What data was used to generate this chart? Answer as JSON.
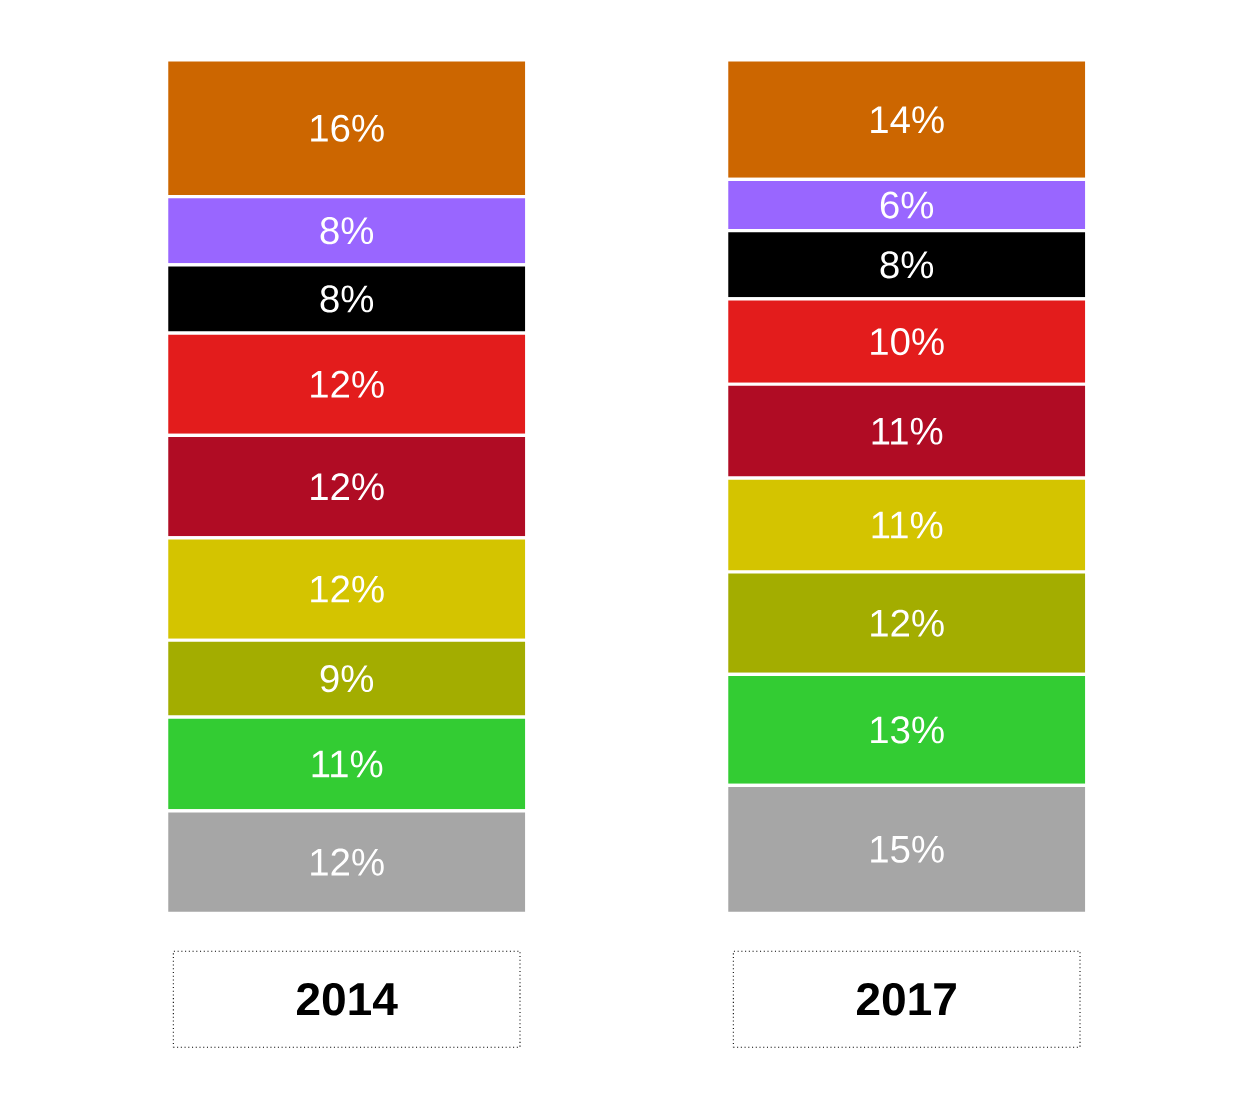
{
  "chart_data": {
    "type": "bar",
    "stacked": true,
    "categories": [
      "2014",
      "2017"
    ],
    "series": [
      {
        "color": "#a6a6a6",
        "values": [
          12,
          15
        ],
        "value_labels": [
          "12%",
          "15%"
        ]
      },
      {
        "color": "#33cc33",
        "values": [
          11,
          13
        ],
        "value_labels": [
          "11%",
          "13%"
        ]
      },
      {
        "color": "#a3ad00",
        "values": [
          9,
          12
        ],
        "value_labels": [
          "9%",
          "12%"
        ]
      },
      {
        "color": "#d4c400",
        "values": [
          12,
          11
        ],
        "value_labels": [
          "12%",
          "11%"
        ]
      },
      {
        "color": "#b00c24",
        "values": [
          12,
          11
        ],
        "value_labels": [
          "12%",
          "11%"
        ]
      },
      {
        "color": "#e31c1c",
        "values": [
          12,
          10
        ],
        "value_labels": [
          "12%",
          "10%"
        ]
      },
      {
        "color": "#000000",
        "values": [
          8,
          8
        ],
        "value_labels": [
          "8%",
          "8%"
        ]
      },
      {
        "color": "#9966ff",
        "values": [
          8,
          6
        ],
        "value_labels": [
          "8%",
          "6%"
        ]
      },
      {
        "color": "#cc6600",
        "values": [
          16,
          14
        ],
        "value_labels": [
          "16%",
          "14%"
        ]
      }
    ]
  }
}
